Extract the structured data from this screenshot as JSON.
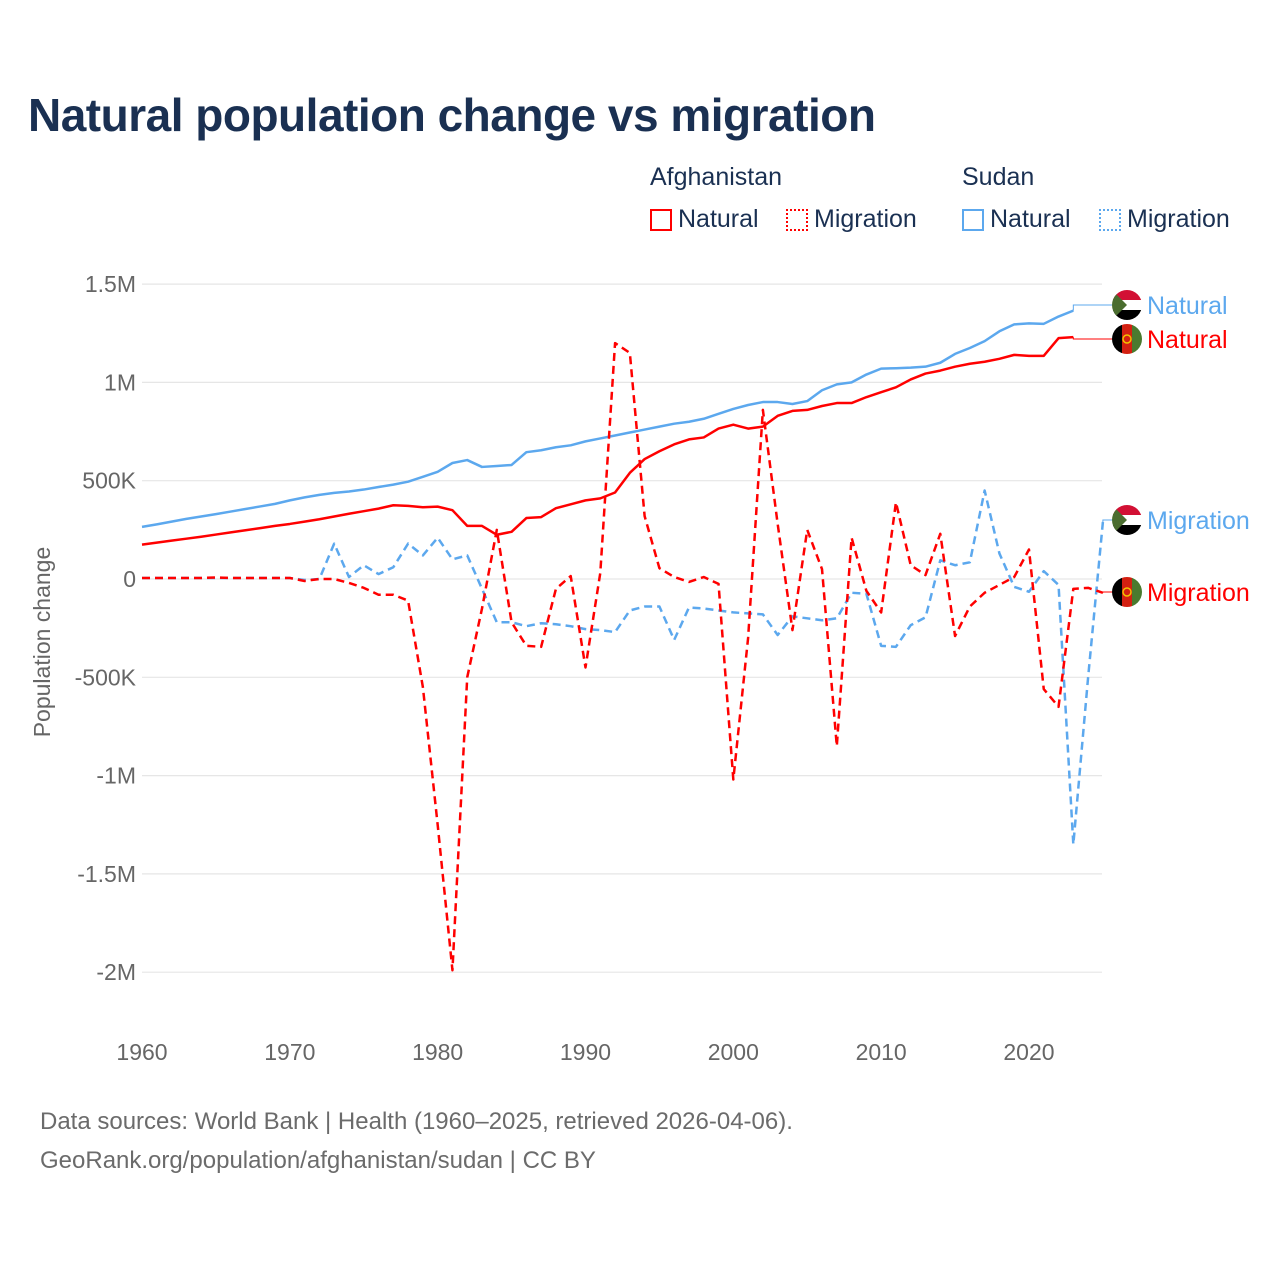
{
  "title": "Natural population change vs migration",
  "legend": {
    "groups": [
      {
        "name": "Afghanistan",
        "color": "#ff0000",
        "items": [
          "Natural",
          "Migration"
        ]
      },
      {
        "name": "Sudan",
        "color": "#5ca8ee",
        "items": [
          "Natural",
          "Migration"
        ]
      }
    ]
  },
  "footer": {
    "line1": "Data sources: World Bank | Health (1960–2025, retrieved 2026-04-06).",
    "line2": "GeoRank.org/population/afghanistan/sudan | CC BY"
  },
  "chart_data": {
    "type": "line",
    "title": "Natural population change vs migration",
    "xlabel": "",
    "ylabel": "Population change",
    "xlim": [
      1960,
      2025
    ],
    "ylim": [
      -2000000,
      1500000
    ],
    "x_ticks": [
      "1960",
      "1970",
      "1980",
      "1990",
      "2000",
      "2010",
      "2020"
    ],
    "y_ticks": [
      {
        "v": 1500000,
        "label": "1.5M"
      },
      {
        "v": 1000000,
        "label": "1M"
      },
      {
        "v": 500000,
        "label": "500K"
      },
      {
        "v": 0,
        "label": "0"
      },
      {
        "v": -500000,
        "label": "-500K"
      },
      {
        "v": -1000000,
        "label": "-1M"
      },
      {
        "v": -1500000,
        "label": "-1.5M"
      },
      {
        "v": -2000000,
        "label": "-2M"
      }
    ],
    "grid": true,
    "units": "thousands",
    "series": [
      {
        "name": "Sudan Natural",
        "label": "Natural",
        "country": "Sudan",
        "color": "#5ca8ee",
        "dash": false,
        "start": 1960,
        "values": [
          265,
          278,
          292,
          306,
          318,
          330,
          343,
          356,
          369,
          382,
          400,
          415,
          428,
          438,
          445,
          455,
          468,
          480,
          495,
          520,
          545,
          590,
          605,
          570,
          575,
          580,
          645,
          655,
          670,
          680,
          700,
          715,
          730,
          745,
          760,
          775,
          790,
          800,
          815,
          840,
          865,
          885,
          900,
          900,
          890,
          905,
          960,
          990,
          1000,
          1040,
          1070,
          1072,
          1075,
          1080,
          1100,
          1145,
          1175,
          1210,
          1260,
          1295,
          1300,
          1298,
          1335,
          1365
        ]
      },
      {
        "name": "Afghanistan Natural",
        "label": "Natural",
        "country": "Afghanistan",
        "color": "#ff0000",
        "dash": false,
        "start": 1960,
        "values": [
          175,
          185,
          195,
          205,
          215,
          226,
          237,
          248,
          259,
          270,
          280,
          292,
          304,
          318,
          332,
          345,
          358,
          375,
          372,
          365,
          368,
          350,
          270,
          270,
          225,
          240,
          310,
          315,
          360,
          380,
          400,
          410,
          440,
          540,
          610,
          650,
          685,
          710,
          720,
          765,
          785,
          765,
          775,
          830,
          855,
          860,
          880,
          895,
          895,
          925,
          950,
          975,
          1015,
          1045,
          1060,
          1080,
          1095,
          1105,
          1120,
          1140,
          1135,
          1135,
          1225,
          1230
        ]
      },
      {
        "name": "Sudan Migration",
        "label": "Migration",
        "country": "Sudan",
        "color": "#5ca8ee",
        "dash": true,
        "start": 1960,
        "values": [
          5,
          5,
          5,
          5,
          5,
          5,
          5,
          5,
          5,
          5,
          5,
          -5,
          0,
          180,
          10,
          70,
          25,
          60,
          180,
          120,
          210,
          100,
          120,
          -50,
          -220,
          -220,
          -240,
          -225,
          -230,
          -240,
          -255,
          -260,
          -270,
          -160,
          -140,
          -140,
          -310,
          -145,
          -150,
          -160,
          -170,
          -175,
          -180,
          -285,
          -190,
          -200,
          -210,
          -200,
          -70,
          -75,
          -340,
          -345,
          -235,
          -195,
          95,
          70,
          85,
          450,
          130,
          -40,
          -65,
          40,
          -30,
          -1350,
          -500,
          290
        ]
      },
      {
        "name": "Afghanistan Migration",
        "label": "Migration",
        "country": "Afghanistan",
        "color": "#ff0000",
        "dash": true,
        "start": 1960,
        "values": [
          5,
          5,
          5,
          5,
          5,
          8,
          5,
          5,
          5,
          5,
          5,
          -10,
          0,
          0,
          -20,
          -45,
          -80,
          -80,
          -110,
          -550,
          -1250,
          -1990,
          -500,
          -150,
          250,
          -220,
          -340,
          -345,
          -50,
          15,
          -450,
          30,
          1200,
          1150,
          320,
          55,
          10,
          -15,
          10,
          -25,
          -1020,
          -300,
          860,
          280,
          -260,
          250,
          50,
          -850,
          210,
          -60,
          -170,
          390,
          70,
          20,
          230,
          -290,
          -140,
          -70,
          -30,
          10,
          150,
          -560,
          -650,
          -50,
          -45,
          -70
        ]
      }
    ]
  }
}
